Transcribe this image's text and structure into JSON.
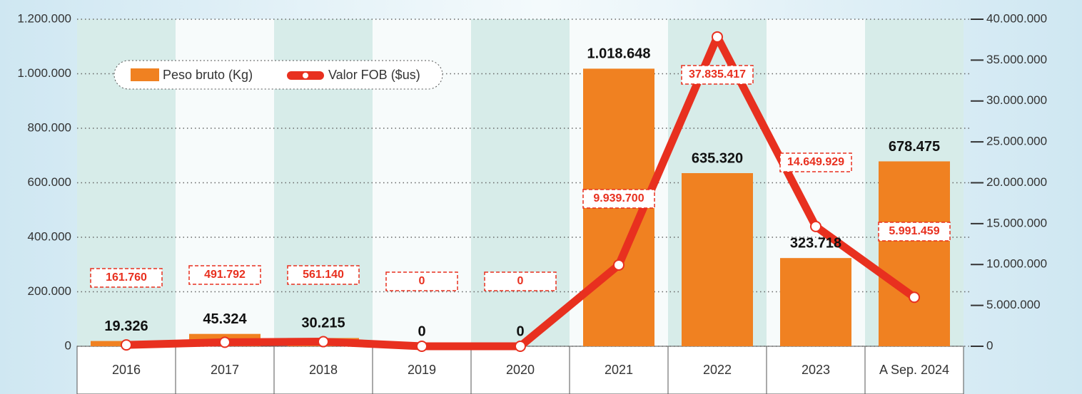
{
  "chart_data": {
    "type": "bar_line",
    "categories": [
      "2016",
      "2017",
      "2018",
      "2019",
      "2020",
      "2021",
      "2022",
      "2023",
      "A Sep. 2024"
    ],
    "series": [
      {
        "name": "Peso bruto (Kg)",
        "color": "#f08121",
        "type": "bar",
        "values": [
          19326,
          45324,
          30215,
          0,
          0,
          1018648,
          635320,
          323718,
          678475
        ],
        "value_labels": [
          "19.326",
          "45.324",
          "30.215",
          "0",
          "0",
          "1.018.648",
          "635.320",
          "323.718",
          "678.475"
        ]
      },
      {
        "name": "Valor FOB ($us)",
        "color": "#e8301f",
        "type": "line",
        "axis": "y2",
        "values": [
          161760,
          491792,
          561140,
          0,
          0,
          9939700,
          37835417,
          14649929,
          5991459
        ],
        "value_labels": [
          "161.760",
          "491.792",
          "561.140",
          "0",
          "0",
          "9.939.700",
          "37.835.417",
          "14.649.929",
          "5.991.459"
        ]
      }
    ],
    "ylim": [
      0,
      1200000
    ],
    "yticks": [
      0,
      {
        "value": 200000,
        "label": "200.000"
      },
      {
        "value": 400000,
        "label": "400.000"
      },
      {
        "value": 600000,
        "label": "600.000"
      },
      {
        "value": 800000,
        "label": "800.000"
      },
      {
        "value": 1000000,
        "label": "1.000.000"
      },
      {
        "value": 1200000,
        "label": "1.200.000"
      }
    ],
    "y2lim": [
      0,
      40000000
    ],
    "y2ticks": [
      0,
      {
        "value": 5000000,
        "label": "5.000.000"
      },
      {
        "value": 10000000,
        "label": "10.000.000"
      },
      {
        "value": 15000000,
        "label": "15.000.000"
      },
      {
        "value": 20000000,
        "label": "20.000.000"
      },
      {
        "value": 25000000,
        "label": "25.000.000"
      },
      {
        "value": 30000000,
        "label": "30.000.000"
      },
      {
        "value": 35000000,
        "label": "35.000.000"
      },
      {
        "value": 40000000,
        "label": "40.000.000"
      }
    ],
    "grid": true
  }
}
